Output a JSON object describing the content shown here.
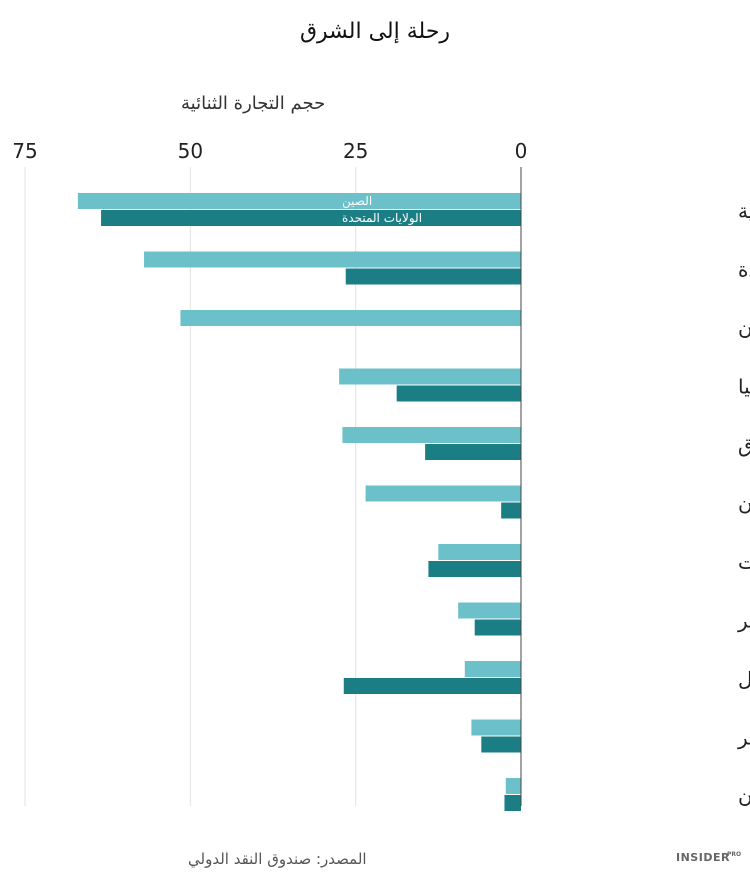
{
  "chart_data": {
    "type": "bar",
    "orientation": "horizontal",
    "title": "رحلة إلى الشرق",
    "xlabel": "حجم التجارة الثنائية",
    "ylabel": "",
    "xlim": [
      0,
      75
    ],
    "x_ticks": [
      "75",
      "50",
      "25",
      "0"
    ],
    "x_tick_values": [
      75,
      50,
      25,
      0
    ],
    "axis_reversed": true,
    "grid": true,
    "categories": [
      "المملكة العربية السعودية",
      "الإمارات العربية المتحدة",
      "إيران",
      "تركيا",
      "العراق",
      "عمان",
      "الكويت",
      "قطر",
      "إسرائيل",
      "مصر",
      "الأردن"
    ],
    "series": [
      {
        "name": "الصين",
        "color": "#6cc0c9",
        "values": [
          67,
          57,
          51.5,
          27.5,
          27,
          23.5,
          12.5,
          9.5,
          8.5,
          7.5,
          2.3
        ]
      },
      {
        "name": "الولايات المتحدة",
        "color": "#1b7e84",
        "values": [
          63.5,
          26.5,
          0,
          18.8,
          14.5,
          3,
          14,
          7,
          26.8,
          6,
          2.5
        ]
      }
    ],
    "legend": "inline-first-category",
    "source": "المصدر: صندوق النقد الدولي"
  },
  "brand": {
    "name": "INSIDER",
    "sup": "PRO"
  }
}
